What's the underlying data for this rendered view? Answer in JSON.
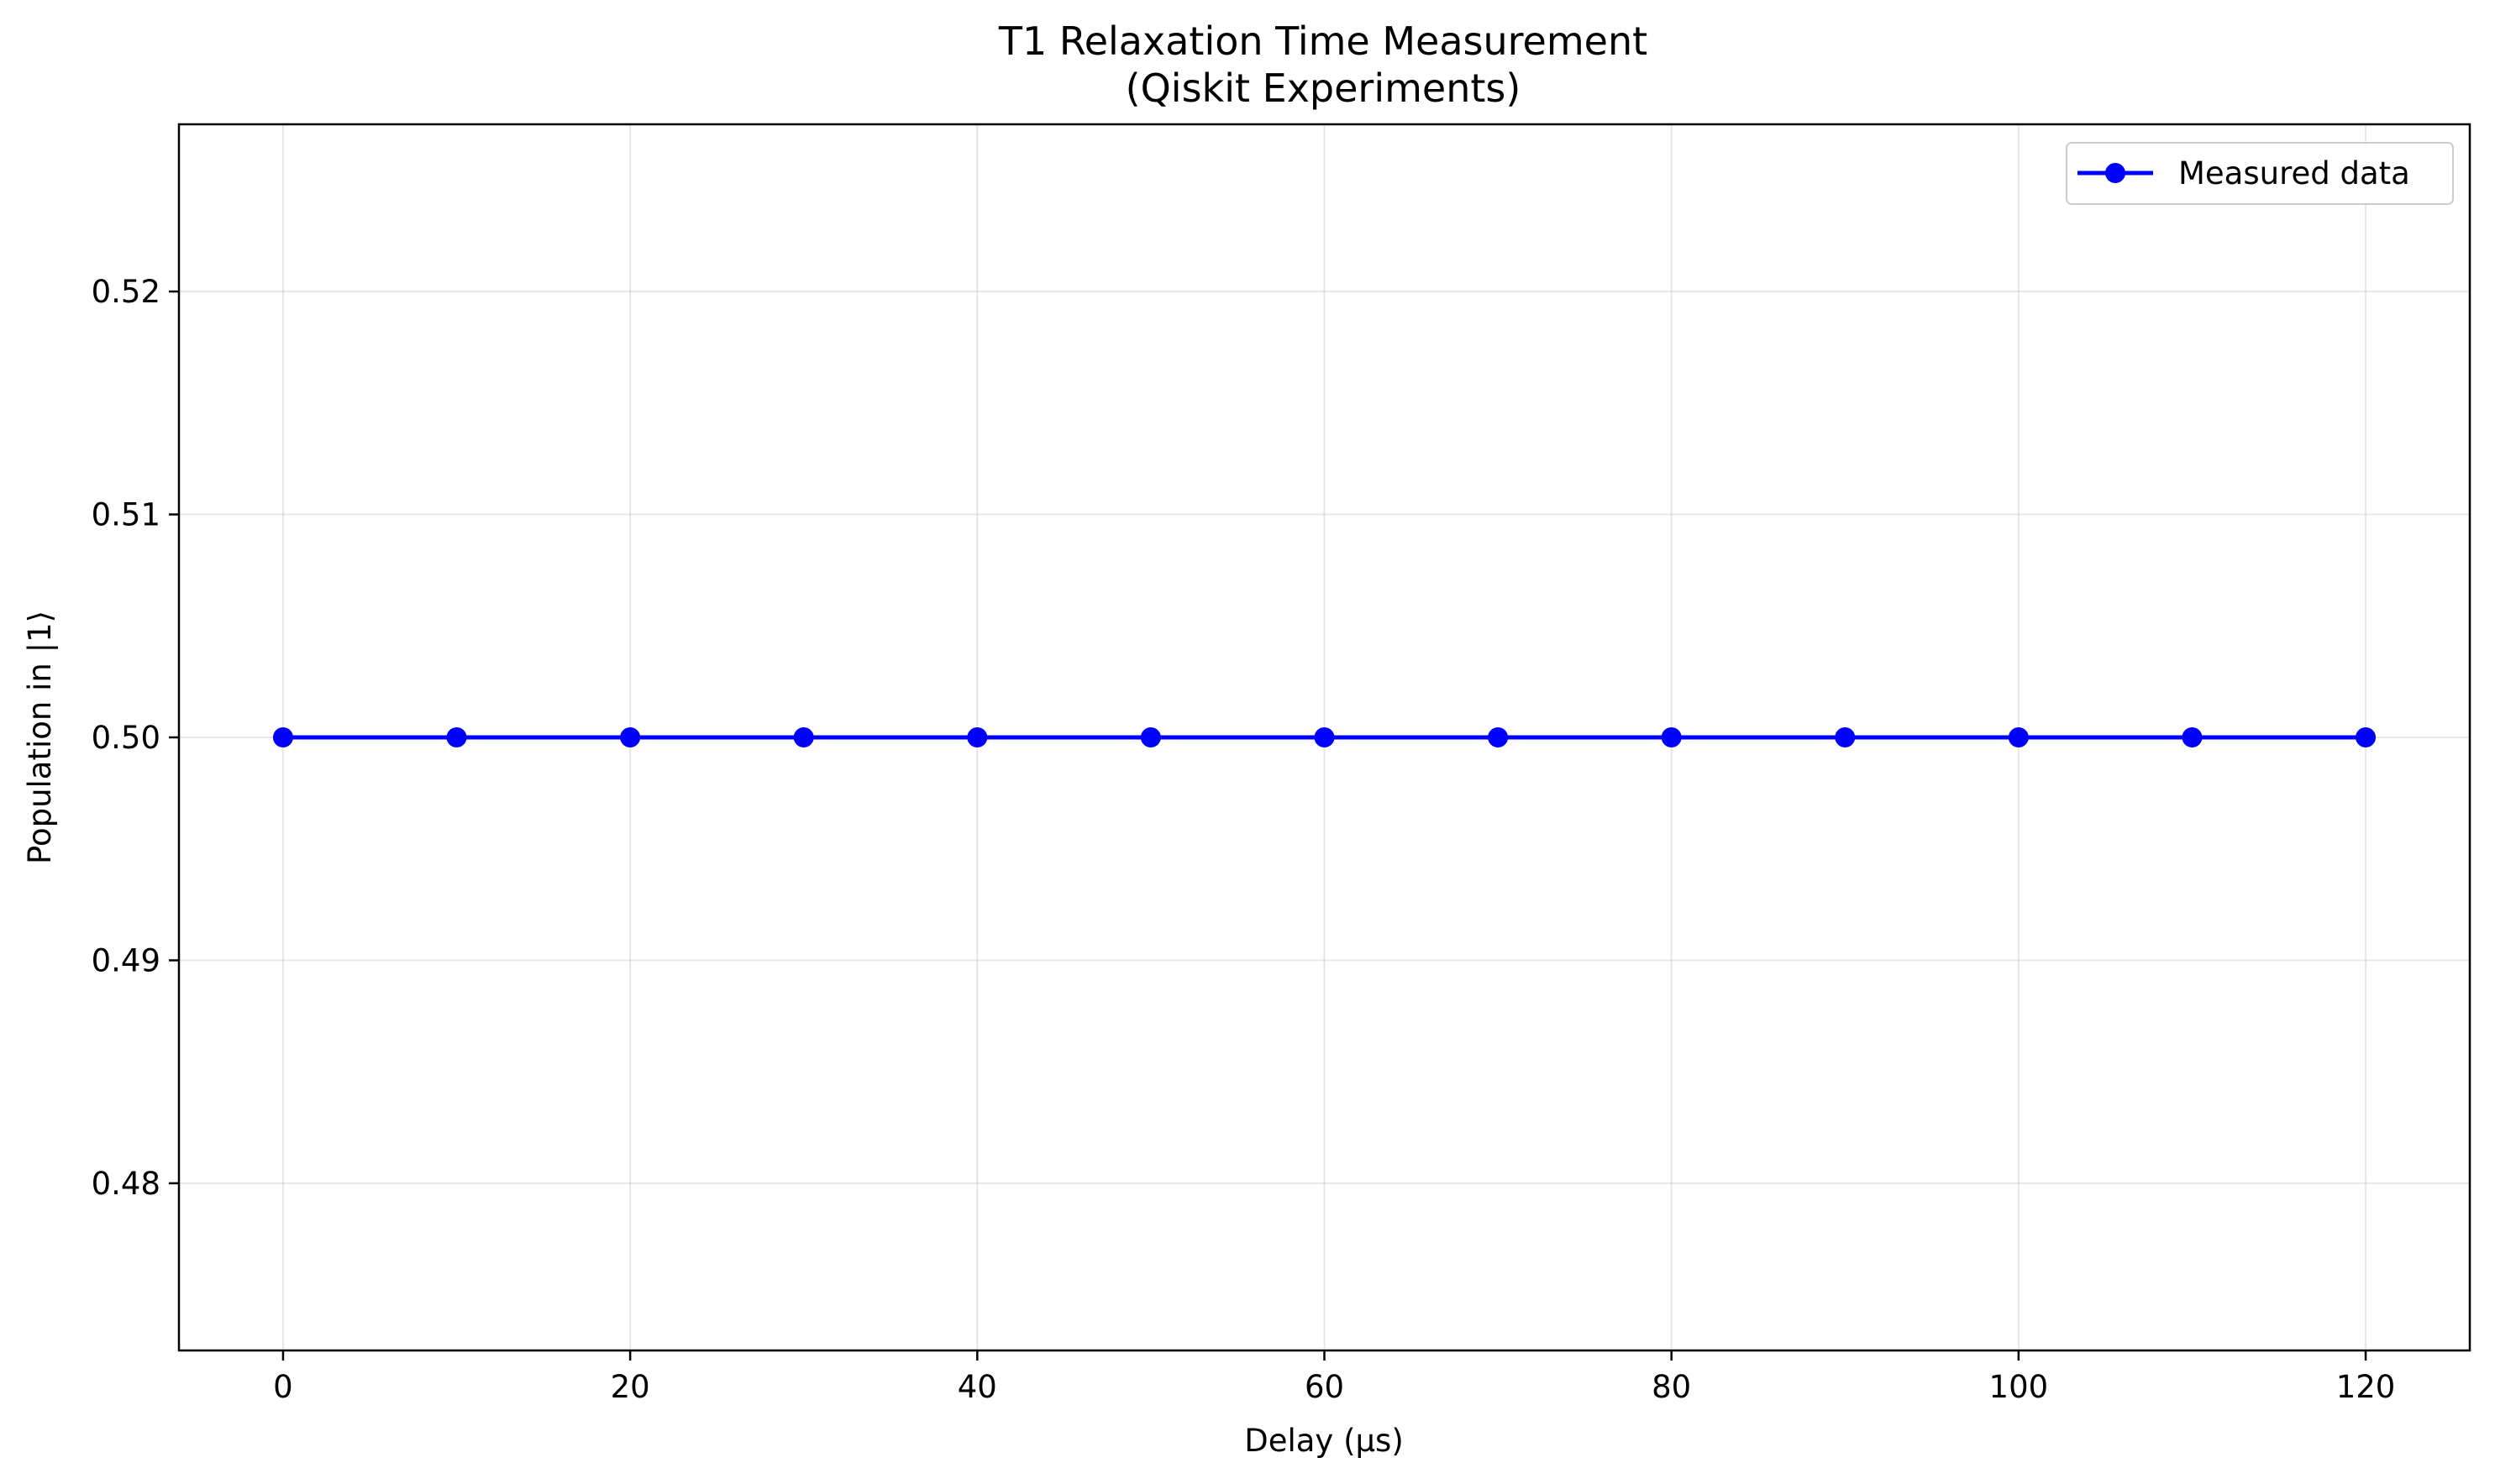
{
  "chart_data": {
    "type": "line",
    "title": "T1 Relaxation Time Measurement",
    "subtitle": "(Qiskit Experiments)",
    "xlabel": "Delay (μs)",
    "ylabel": "Population in |1⟩",
    "xlim": [
      -6,
      126
    ],
    "ylim": [
      0.4725,
      0.5275
    ],
    "xticks": [
      0,
      20,
      40,
      60,
      80,
      100,
      120
    ],
    "yticks": [
      0.48,
      0.49,
      0.5,
      0.51,
      0.52
    ],
    "xtick_labels": [
      "0",
      "20",
      "40",
      "60",
      "80",
      "100",
      "120"
    ],
    "ytick_labels": [
      "0.48",
      "0.49",
      "0.50",
      "0.51",
      "0.52"
    ],
    "grid": true,
    "legend_position": "top-right",
    "series": [
      {
        "name": "Measured data",
        "color": "#0000ff",
        "marker": "circle",
        "x": [
          0,
          10,
          20,
          30,
          40,
          50,
          60,
          70,
          80,
          90,
          100,
          110,
          120
        ],
        "y": [
          0.5,
          0.5,
          0.5,
          0.5,
          0.5,
          0.5,
          0.5,
          0.5,
          0.5,
          0.5,
          0.5,
          0.5,
          0.5
        ]
      }
    ]
  }
}
